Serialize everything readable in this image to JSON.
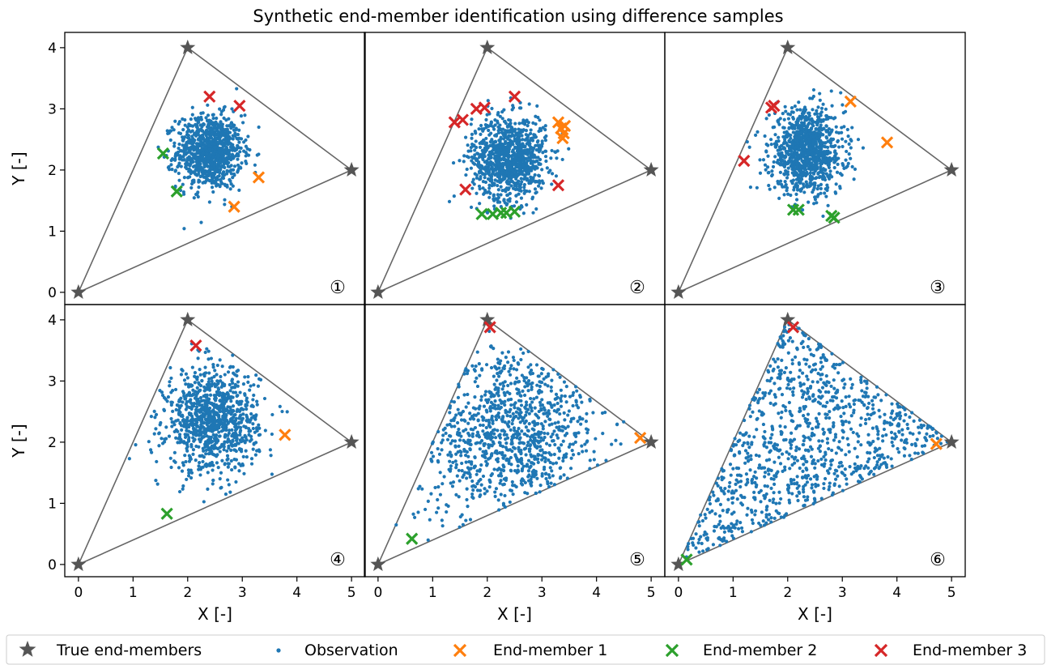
{
  "title": "Synthetic end-member identification using difference samples",
  "colors": {
    "observation": "#1f77b4",
    "end_member_1": "#ff7f0e",
    "end_member_2": "#2ca02c",
    "end_member_3": "#d62728",
    "true_end_members": "#555555",
    "triangle": "#666666"
  },
  "legend": {
    "true_end_members": "True end-members",
    "observation": "Observation",
    "end_member_1": "End-member 1",
    "end_member_2": "End-member 2",
    "end_member_3": "End-member 3"
  },
  "chart_data": {
    "type": "scatter",
    "layout": "2x3 shared axes",
    "xlabel": "X [-]",
    "ylabel": "Y [-]",
    "xlim": [
      -0.25,
      5.25
    ],
    "ylim": [
      -0.2,
      4.25
    ],
    "xticks": [
      0,
      1,
      2,
      3,
      4,
      5
    ],
    "yticks": [
      0,
      1,
      2,
      3,
      4
    ],
    "true_end_members": [
      [
        0,
        0
      ],
      [
        2,
        4
      ],
      [
        5,
        2
      ]
    ],
    "observation_count_per_panel": 1000,
    "panels": [
      {
        "label": "①",
        "observation_distribution": {
          "type": "gaussian",
          "mean": [
            2.4,
            2.3
          ],
          "sd": [
            0.3,
            0.3
          ]
        },
        "end_member_1": [
          [
            3.3,
            1.88
          ],
          [
            2.85,
            1.4
          ]
        ],
        "end_member_2": [
          [
            1.55,
            2.27
          ],
          [
            1.8,
            1.65
          ]
        ],
        "end_member_3": [
          [
            2.4,
            3.2
          ],
          [
            2.95,
            3.05
          ]
        ]
      },
      {
        "label": "②",
        "observation_distribution": {
          "type": "gaussian",
          "mean": [
            2.4,
            2.2
          ],
          "sd": [
            0.34,
            0.34
          ]
        },
        "end_member_1": [
          [
            3.3,
            2.78
          ],
          [
            3.35,
            2.68
          ],
          [
            3.4,
            2.6
          ],
          [
            3.38,
            2.52
          ],
          [
            3.42,
            2.72
          ]
        ],
        "end_member_2": [
          [
            1.9,
            1.28
          ],
          [
            2.1,
            1.28
          ],
          [
            2.25,
            1.3
          ],
          [
            2.35,
            1.3
          ],
          [
            2.5,
            1.32
          ]
        ],
        "end_member_3": [
          [
            1.4,
            2.78
          ],
          [
            1.55,
            2.82
          ],
          [
            1.8,
            3.0
          ],
          [
            1.95,
            3.02
          ],
          [
            2.5,
            3.2
          ],
          [
            1.6,
            1.68
          ],
          [
            3.3,
            1.75
          ]
        ]
      },
      {
        "label": "③",
        "observation_distribution": {
          "type": "gaussian",
          "mean": [
            2.35,
            2.3
          ],
          "sd": [
            0.34,
            0.34
          ]
        },
        "end_member_1": [
          [
            3.15,
            3.12
          ],
          [
            3.82,
            2.45
          ]
        ],
        "end_member_2": [
          [
            2.1,
            1.35
          ],
          [
            2.2,
            1.35
          ],
          [
            2.8,
            1.25
          ],
          [
            2.85,
            1.22
          ]
        ],
        "end_member_3": [
          [
            1.7,
            3.02
          ],
          [
            1.75,
            3.05
          ],
          [
            1.2,
            2.15
          ]
        ]
      },
      {
        "label": "④",
        "observation_distribution": {
          "type": "gaussian",
          "mean": [
            2.45,
            2.35
          ],
          "sd": [
            0.42,
            0.42
          ]
        },
        "end_member_1": [
          [
            3.78,
            2.12
          ]
        ],
        "end_member_2": [
          [
            1.62,
            0.83
          ]
        ],
        "end_member_3": [
          [
            2.15,
            3.58
          ]
        ]
      },
      {
        "label": "⑤",
        "observation_distribution": {
          "type": "gaussian-in-triangle",
          "mean": [
            2.4,
            2.15
          ],
          "sd": [
            0.85,
            0.75
          ]
        },
        "end_member_1": [
          [
            4.8,
            2.07
          ]
        ],
        "end_member_2": [
          [
            0.62,
            0.42
          ]
        ],
        "end_member_3": [
          [
            2.05,
            3.88
          ]
        ]
      },
      {
        "label": "⑥",
        "observation_distribution": {
          "type": "uniform-in-triangle"
        },
        "end_member_1": [
          [
            4.72,
            1.97
          ]
        ],
        "end_member_2": [
          [
            0.15,
            0.08
          ]
        ],
        "end_member_3": [
          [
            2.1,
            3.88
          ]
        ]
      }
    ]
  }
}
